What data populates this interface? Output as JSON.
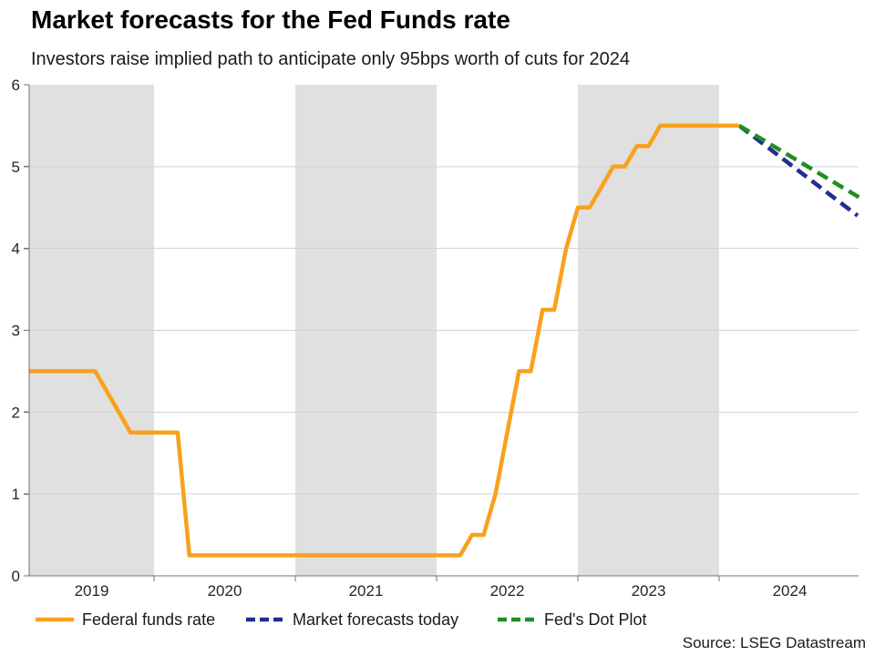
{
  "title": "Market forecasts for the Fed Funds rate",
  "subtitle": "Investors raise implied path to anticipate only 95bps worth of cuts for 2024",
  "source": "Source: LSEG Datastream",
  "colors": {
    "orange": "#F9A11B",
    "navy": "#232D91",
    "green": "#1E9021",
    "band": "#E0E0E0",
    "grid": "#D3D3D3",
    "axis": "#737373",
    "tick_label": "#262626"
  },
  "chart_data": {
    "type": "line",
    "title": "Market forecasts for the Fed Funds rate",
    "subtitle": "Investors raise implied path to anticipate only 95bps worth of cuts for 2024",
    "xlabel": "",
    "ylabel": "",
    "x_domain_years": [
      2019.116,
      2025.0
    ],
    "ylim": [
      0,
      6
    ],
    "y_ticks": [
      0,
      1,
      2,
      3,
      4,
      5,
      6
    ],
    "x_tick_year_labels": [
      "2019",
      "2020",
      "2021",
      "2022",
      "2023",
      "2024"
    ],
    "x_tick_years": [
      2019,
      2020,
      2021,
      2022,
      2023,
      2024
    ],
    "shaded_years": [
      2019,
      2021,
      2023
    ],
    "grid": true,
    "legend_position": "bottom",
    "series": [
      {
        "name": "Federal funds rate",
        "color_key": "orange",
        "dashed": false,
        "points": [
          [
            2019.116,
            2.5
          ],
          [
            2019.583,
            2.5
          ],
          [
            2019.667,
            2.25
          ],
          [
            2019.75,
            2.0
          ],
          [
            2019.833,
            1.75
          ],
          [
            2020.167,
            1.75
          ],
          [
            2020.25,
            0.25
          ],
          [
            2022.167,
            0.25
          ],
          [
            2022.25,
            0.5
          ],
          [
            2022.333,
            0.5
          ],
          [
            2022.417,
            1.0
          ],
          [
            2022.5,
            1.75
          ],
          [
            2022.583,
            2.5
          ],
          [
            2022.667,
            2.5
          ],
          [
            2022.75,
            3.25
          ],
          [
            2022.833,
            3.25
          ],
          [
            2022.917,
            4.0
          ],
          [
            2023.0,
            4.5
          ],
          [
            2023.083,
            4.5
          ],
          [
            2023.167,
            4.75
          ],
          [
            2023.25,
            5.0
          ],
          [
            2023.333,
            5.0
          ],
          [
            2023.417,
            5.25
          ],
          [
            2023.5,
            5.25
          ],
          [
            2023.583,
            5.5
          ],
          [
            2024.142,
            5.5
          ]
        ]
      },
      {
        "name": "Market forecasts today",
        "color_key": "navy",
        "dashed": true,
        "points": [
          [
            2024.142,
            5.5
          ],
          [
            2024.98,
            4.4
          ]
        ]
      },
      {
        "name": "Fed's Dot Plot",
        "color_key": "green",
        "dashed": true,
        "points": [
          [
            2024.142,
            5.5
          ],
          [
            2024.99,
            4.625
          ]
        ]
      }
    ]
  }
}
